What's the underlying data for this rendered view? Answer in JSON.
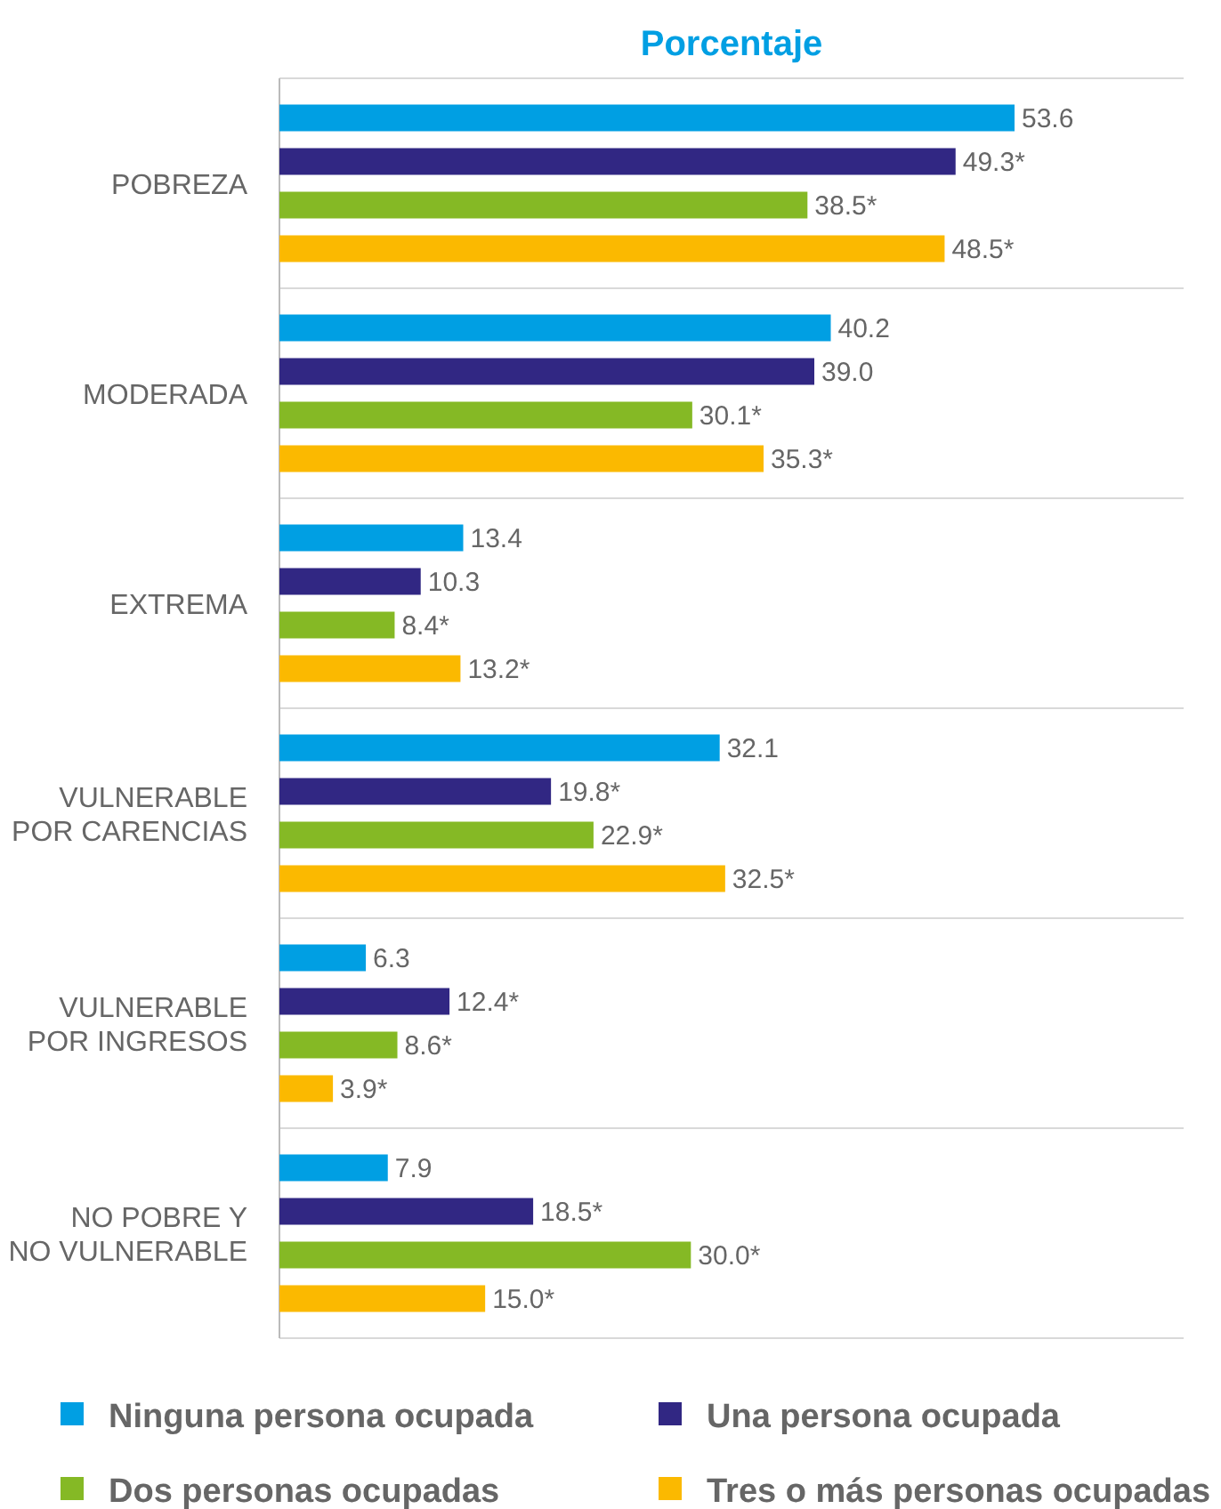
{
  "chart_data": {
    "type": "bar",
    "orientation": "horizontal",
    "title": "Porcentaje",
    "grid": "y",
    "legend": "bottom",
    "data_labels": false,
    "categories": [
      "POBREZA",
      "MODERADA",
      "EXTREMA",
      "VULNERABLE\nPOR CARENCIAS",
      "VULNERABLE\nPOR INGRESOS",
      "NO POBRE Y\nNO VULNERABLE"
    ],
    "series": [
      {
        "name": "Ninguna persona ocupada",
        "color": "#009fe3",
        "values": [
          53.6,
          40.2,
          13.4,
          32.1,
          6.3,
          7.9
        ],
        "value_labels": [
          "53.6",
          "40.2",
          "13.4",
          "32.1",
          "6.3",
          "7.9"
        ]
      },
      {
        "name": "Una persona ocupada",
        "color": "#312783",
        "values": [
          49.3,
          39.0,
          10.3,
          19.8,
          12.4,
          18.5
        ],
        "value_labels": [
          "49.3*",
          "39.0",
          "10.3",
          "19.8*",
          "12.4*",
          "18.5*"
        ]
      },
      {
        "name": "Dos personas ocupadas",
        "color": "#85b925",
        "values": [
          38.5,
          30.1,
          8.4,
          22.9,
          8.6,
          30.0
        ],
        "value_labels": [
          "38.5*",
          "30.1*",
          "8.4*",
          "22.9*",
          "8.6*",
          "30.0*"
        ]
      },
      {
        "name": "Tres o más personas ocupadas",
        "color": "#fbb900",
        "values": [
          48.5,
          35.3,
          13.2,
          32.5,
          3.9,
          15.0
        ],
        "value_labels": [
          "48.5*",
          "35.3*",
          "13.2*",
          "32.5*",
          "3.9*",
          "15.0*"
        ]
      }
    ]
  }
}
